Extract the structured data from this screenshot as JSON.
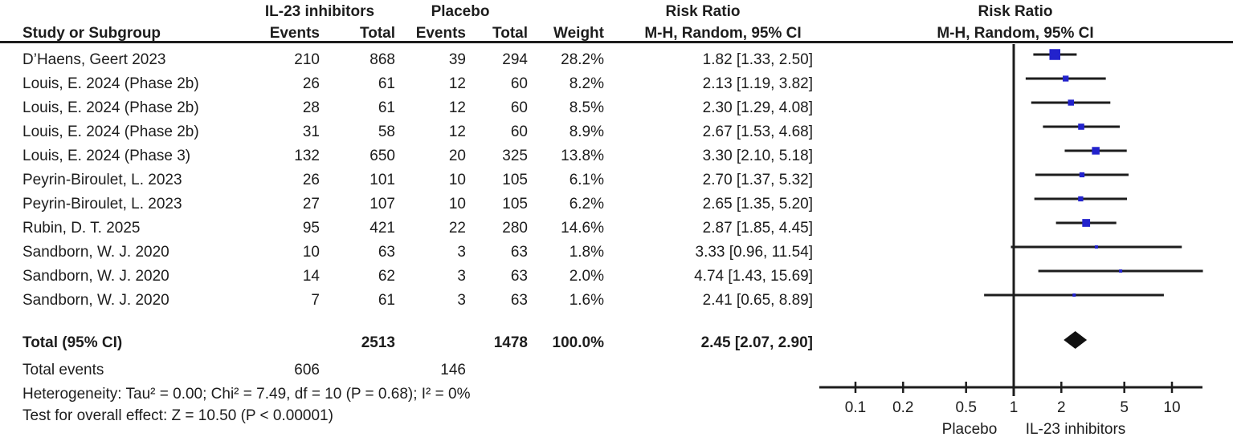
{
  "header": {
    "group_treatment": "IL-23 inhibitors",
    "group_placebo": "Placebo",
    "risk_ratio_stat": "Risk Ratio",
    "risk_ratio_plot": "Risk Ratio",
    "col_study": "Study or Subgroup",
    "col_events_treatment": "Events",
    "col_total_treatment": "Total",
    "col_events_placebo": "Events",
    "col_total_placebo": "Total",
    "col_weight": "Weight",
    "col_mh_stat": "M-H, Random, 95% CI",
    "col_mh_plot": "M-H, Random, 95% CI"
  },
  "chart_data": {
    "type": "forest",
    "x_scale": "log10",
    "effect_measure": "Risk Ratio",
    "method": "M-H, Random, 95% CI",
    "axis_ticks": [
      "0.1",
      "0.2",
      "0.5",
      "1",
      "2",
      "5",
      "10"
    ],
    "axis_label_left": "Placebo",
    "axis_label_right": "IL-23 inhibitors",
    "marker_color": "#2222cc",
    "diamond_color": "#111111",
    "line_color": "#1d1d1d",
    "studies": [
      {
        "name": "D’Haens, Geert 2023",
        "events1": 210,
        "total1": 868,
        "events2": 39,
        "total2": 294,
        "weight": "28.2%",
        "weight_value": 28.2,
        "rr": 1.82,
        "ci_lo": 1.33,
        "ci_hi": 2.5,
        "label": "1.82 [1.33, 2.50]"
      },
      {
        "name": "Louis, E. 2024 (Phase 2b)",
        "events1": 26,
        "total1": 61,
        "events2": 12,
        "total2": 60,
        "weight": "8.2%",
        "weight_value": 8.2,
        "rr": 2.13,
        "ci_lo": 1.19,
        "ci_hi": 3.82,
        "label": "2.13 [1.19, 3.82]"
      },
      {
        "name": "Louis, E. 2024 (Phase 2b)",
        "events1": 28,
        "total1": 61,
        "events2": 12,
        "total2": 60,
        "weight": "8.5%",
        "weight_value": 8.5,
        "rr": 2.3,
        "ci_lo": 1.29,
        "ci_hi": 4.08,
        "label": "2.30 [1.29, 4.08]"
      },
      {
        "name": "Louis, E. 2024 (Phase 2b)",
        "events1": 31,
        "total1": 58,
        "events2": 12,
        "total2": 60,
        "weight": "8.9%",
        "weight_value": 8.9,
        "rr": 2.67,
        "ci_lo": 1.53,
        "ci_hi": 4.68,
        "label": "2.67 [1.53, 4.68]"
      },
      {
        "name": "Louis, E. 2024 (Phase 3)",
        "events1": 132,
        "total1": 650,
        "events2": 20,
        "total2": 325,
        "weight": "13.8%",
        "weight_value": 13.8,
        "rr": 3.3,
        "ci_lo": 2.1,
        "ci_hi": 5.18,
        "label": "3.30 [2.10, 5.18]"
      },
      {
        "name": "Peyrin-Biroulet, L. 2023",
        "events1": 26,
        "total1": 101,
        "events2": 10,
        "total2": 105,
        "weight": "6.1%",
        "weight_value": 6.1,
        "rr": 2.7,
        "ci_lo": 1.37,
        "ci_hi": 5.32,
        "label": "2.70 [1.37, 5.32]"
      },
      {
        "name": "Peyrin-Biroulet, L. 2023",
        "events1": 27,
        "total1": 107,
        "events2": 10,
        "total2": 105,
        "weight": "6.2%",
        "weight_value": 6.2,
        "rr": 2.65,
        "ci_lo": 1.35,
        "ci_hi": 5.2,
        "label": "2.65 [1.35, 5.20]"
      },
      {
        "name": "Rubin, D. T. 2025",
        "events1": 95,
        "total1": 421,
        "events2": 22,
        "total2": 280,
        "weight": "14.6%",
        "weight_value": 14.6,
        "rr": 2.87,
        "ci_lo": 1.85,
        "ci_hi": 4.45,
        "label": "2.87 [1.85, 4.45]"
      },
      {
        "name": "Sandborn, W. J. 2020",
        "events1": 10,
        "total1": 63,
        "events2": 3,
        "total2": 63,
        "weight": "1.8%",
        "weight_value": 1.8,
        "rr": 3.33,
        "ci_lo": 0.96,
        "ci_hi": 11.54,
        "label": "3.33 [0.96, 11.54]"
      },
      {
        "name": "Sandborn, W. J. 2020",
        "events1": 14,
        "total1": 62,
        "events2": 3,
        "total2": 63,
        "weight": "2.0%",
        "weight_value": 2.0,
        "rr": 4.74,
        "ci_lo": 1.43,
        "ci_hi": 15.69,
        "label": "4.74 [1.43, 15.69]"
      },
      {
        "name": "Sandborn, W. J. 2020",
        "events1": 7,
        "total1": 61,
        "events2": 3,
        "total2": 63,
        "weight": "1.6%",
        "weight_value": 1.6,
        "rr": 2.41,
        "ci_lo": 0.65,
        "ci_hi": 8.89,
        "label": "2.41 [0.65, 8.89]"
      }
    ],
    "total": {
      "name": "Total (95% CI)",
      "total1": 2513,
      "total2": 1478,
      "weight": "100.0%",
      "rr": 2.45,
      "ci_lo": 2.07,
      "ci_hi": 2.9,
      "label": "2.45 [2.07, 2.90]"
    },
    "total_events": {
      "name": "Total events",
      "events1": 606,
      "events2": 146
    },
    "heterogeneity": "Heterogeneity: Tau² = 0.00; Chi² = 7.49, df = 10 (P = 0.68); I² = 0%",
    "overall_effect": "Test for overall effect: Z = 10.50 (P < 0.00001)"
  }
}
